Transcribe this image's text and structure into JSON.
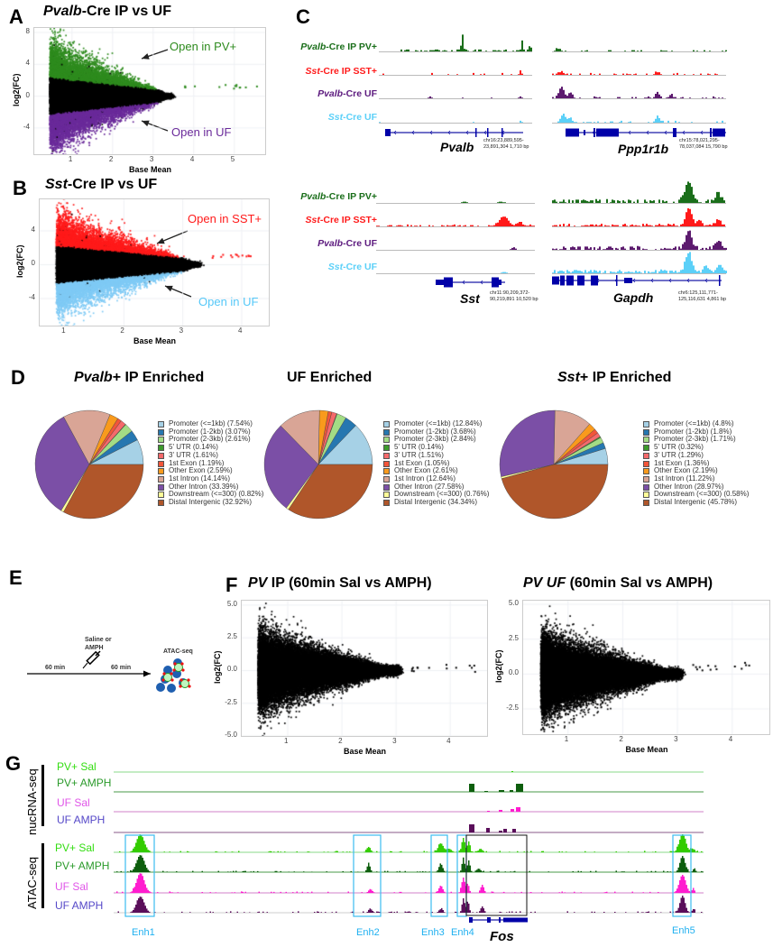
{
  "panel_labels": {
    "A": "A",
    "B": "B",
    "C": "C",
    "D": "D",
    "E": "E",
    "F": "F",
    "G": "G"
  },
  "panel_a": {
    "title_italic": "Pvalb",
    "title_rest": "-Cre IP vs UF",
    "annotation_up": "Open in PV+",
    "annotation_down": "Open in UF",
    "color_up": "#2e8b1e",
    "color_down": "#6a2a9a"
  },
  "panel_b": {
    "title_italic": "Sst",
    "title_rest": "-Cre IP vs UF",
    "annotation_up": "Open in SST+",
    "annotation_down": "Open in UF",
    "color_up": "#ff1a1a",
    "color_down": "#66ccff"
  },
  "panel_c": {
    "track_labels": [
      {
        "italic": "Pvalb",
        "rest": "-Cre IP PV+",
        "color": "#1a6e1a"
      },
      {
        "italic": "Sst",
        "rest": "-Cre IP SST+",
        "color": "#ff1a1a"
      },
      {
        "italic": "Pvalb",
        "rest": "-Cre UF",
        "color": "#5c1a7e"
      },
      {
        "italic": "Sst",
        "rest": "-Cre UF",
        "color": "#5bd0f8"
      }
    ],
    "genes": [
      {
        "name": "Pvalb",
        "coord1": "chr16:23,889,595-",
        "coord2": "23,891,304 1,710 bp"
      },
      {
        "name": "Ppp1r1b",
        "coord1": "chr15:78,021,295-",
        "coord2": "78,037,084 15,790 bp"
      },
      {
        "name": "Sst",
        "coord1": "chr11:90,209,372-",
        "coord2": "90,219,891 10,520 bp"
      },
      {
        "name": "Gapdh",
        "coord1": "chr6:125,111,771-",
        "coord2": "125,116,631 4,861 bp"
      }
    ]
  },
  "panel_e": {
    "treatment_line1": "Saline or",
    "treatment_line2": "AMPH",
    "time1": "60 min",
    "time2": "60 min",
    "assay": "ATAC-seq"
  },
  "panel_f": {
    "left_title_italic": "PV",
    "left_title_rest": " IP (60min Sal vs AMPH)",
    "right_title_italic": "PV UF",
    "right_title_rest": " (60min Sal vs AMPH)"
  },
  "panel_g": {
    "group_nuc": "nucRNA-seq",
    "group_atac": "ATAC-seq",
    "tracks": [
      {
        "label": "PV+ Sal",
        "color": "#33dd11"
      },
      {
        "label": "PV+ AMPH",
        "color": "#2a9a2a"
      },
      {
        "label": "UF Sal",
        "color": "#e055e8"
      },
      {
        "label": "UF AMPH",
        "color": "#5548c8"
      }
    ],
    "enhancers": [
      "Enh1",
      "Enh2",
      "Enh3",
      "Enh4",
      "Enh5"
    ],
    "gene": "Fos"
  },
  "chart_data": [
    {
      "id": "A",
      "type": "scatter",
      "title": "Pvalb-Cre IP vs UF",
      "xlabel": "Base Mean",
      "ylabel": "log2(FC)",
      "xticks": [
        "1",
        "2",
        "3",
        "4",
        "5"
      ],
      "yticks": [
        "8",
        "4",
        "0",
        "-4"
      ],
      "xlim": [
        0.07,
        5.76
      ],
      "ylim": [
        -7.3,
        8.57
      ],
      "grid": true,
      "series": [
        {
          "name": "Open in PV+",
          "color": "#2e8b1e"
        },
        {
          "name": "Not significant",
          "color": "#000000"
        },
        {
          "name": "Open in UF",
          "color": "#6a2a9a"
        }
      ]
    },
    {
      "id": "B",
      "type": "scatter",
      "title": "Sst-Cre IP vs UF",
      "xlabel": "Base Mean",
      "ylabel": "log2(FC)",
      "xticks": [
        "1",
        "2",
        "3",
        "4"
      ],
      "yticks": [
        "4",
        "0",
        "-4"
      ],
      "xlim": [
        0.57,
        4.46
      ],
      "ylim": [
        -7.2,
        7.73
      ],
      "grid": true,
      "series": [
        {
          "name": "Open in SST+",
          "color": "#ff1a1a"
        },
        {
          "name": "Not significant",
          "color": "#000000"
        },
        {
          "name": "Open in UF",
          "color": "#66ccff"
        }
      ]
    },
    {
      "id": "D1",
      "type": "pie",
      "title_italic": "Pvalb",
      "title_rest": "+ IP Enriched",
      "categories": [
        "Promoter (<=1kb)",
        "Promoter (1-2kb)",
        "Promoter (2-3kb)",
        "5' UTR",
        "3' UTR",
        "1st Exon",
        "Other Exon",
        "1st Intron",
        "Other Intron",
        "Downstream (<=300)",
        "Distal Intergenic"
      ],
      "values": [
        7.54,
        3.07,
        2.61,
        0.14,
        1.61,
        1.19,
        2.59,
        14.14,
        33.39,
        0.82,
        32.92
      ],
      "labels": [
        "Promoter (<=1kb) (7.54%)",
        "Promoter (1-2kb) (3.07%)",
        "Promoter (2-3kb) (2.61%)",
        "5' UTR (0.14%)",
        "3' UTR (1.61%)",
        "1st Exon (1.19%)",
        "Other Exon (2.59%)",
        "1st Intron (14.14%)",
        "Other Intron (33.39%)",
        "Downstream (<=300) (0.82%)",
        "Distal Intergenic (32.92%)"
      ]
    },
    {
      "id": "D2",
      "type": "pie",
      "title_italic": "",
      "title_rest": "UF Enriched",
      "categories": [
        "Promoter (<=1kb)",
        "Promoter (1-2kb)",
        "Promoter (2-3kb)",
        "5' UTR",
        "3' UTR",
        "1st Exon",
        "Other Exon",
        "1st Intron",
        "Other Intron",
        "Downstream (<=300)",
        "Distal Intergenic"
      ],
      "values": [
        12.84,
        3.68,
        2.84,
        0.14,
        1.51,
        1.05,
        2.61,
        12.64,
        27.58,
        0.76,
        34.34
      ],
      "labels": [
        "Promoter (<=1kb) (12.84%)",
        "Promoter (1-2kb) (3.68%)",
        "Promoter (2-3kb) (2.84%)",
        "5' UTR (0.14%)",
        "3' UTR (1.51%)",
        "1st Exon (1.05%)",
        "Other Exon (2.61%)",
        "1st Intron (12.64%)",
        "Other Intron (27.58%)",
        "Downstream (<=300) (0.76%)",
        "Distal Intergenic (34.34%)"
      ]
    },
    {
      "id": "D3",
      "type": "pie",
      "title_italic": "Sst",
      "title_rest": "+ IP Enriched",
      "categories": [
        "Promoter (<=1kb)",
        "Promoter (1-2kb)",
        "Promoter (2-3kb)",
        "5' UTR",
        "3' UTR",
        "1st Exon",
        "Other Exon",
        "1st Intron",
        "Other Intron",
        "Downstream (<=300)",
        "Distal Intergenic"
      ],
      "values": [
        4.8,
        1.8,
        1.71,
        0.32,
        1.29,
        1.36,
        2.19,
        11.22,
        28.97,
        0.58,
        45.78
      ],
      "labels": [
        "Promoter (<=1kb) (4.8%)",
        "Promoter (1-2kb) (1.8%)",
        "Promoter (2-3kb) (1.71%)",
        "5' UTR (0.32%)",
        "3' UTR (1.29%)",
        "1st Exon (1.36%)",
        "Other Exon (2.19%)",
        "1st Intron (11.22%)",
        "Other Intron (28.97%)",
        "Downstream (<=300) (0.58%)",
        "Distal Intergenic (45.78%)"
      ]
    },
    {
      "id": "F1",
      "type": "scatter",
      "title": "PV IP (60min Sal vs AMPH)",
      "xlabel": "Base Mean",
      "ylabel": "log2(FC)",
      "xticks": [
        "1",
        "2",
        "3",
        "4"
      ],
      "yticks": [
        "5.0",
        "2.5",
        "0.0",
        "-2.5",
        "-5.0"
      ],
      "xlim": [
        0.15,
        4.68
      ],
      "ylim": [
        -5.0,
        5.34
      ],
      "grid": true
    },
    {
      "id": "F2",
      "type": "scatter",
      "title": "PV UF (60min Sal vs AMPH)",
      "xlabel": "Base Mean",
      "ylabel": "log2(FC)",
      "xticks": [
        "1",
        "2",
        "3",
        "4"
      ],
      "yticks": [
        "5.0",
        "2.5",
        "0.0",
        "-2.5"
      ],
      "xlim": [
        0.18,
        4.68
      ],
      "ylim": [
        -4.31,
        5.26
      ],
      "grid": true
    }
  ],
  "pie_colors": [
    "#a6d1e6",
    "#2677b0",
    "#a3dc85",
    "#3d9a2c",
    "#f5696b",
    "#f2553a",
    "#f99a1c",
    "#d9a596",
    "#7b4fa6",
    "#ffff99",
    "#b0562a"
  ]
}
